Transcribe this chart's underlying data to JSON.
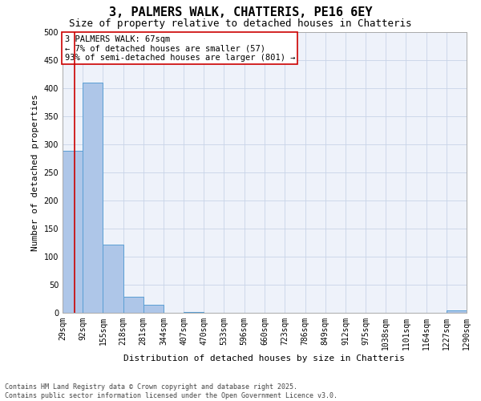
{
  "title": "3, PALMERS WALK, CHATTERIS, PE16 6EY",
  "subtitle": "Size of property relative to detached houses in Chatteris",
  "xlabel": "Distribution of detached houses by size in Chatteris",
  "ylabel": "Number of detached properties",
  "bar_color": "#aec6e8",
  "bar_edge_color": "#5a9fd4",
  "grid_color": "#c8d4e8",
  "bg_color": "#eef2fa",
  "annotation_box_color": "#cc0000",
  "vline_color": "#cc0000",
  "bins": [
    29,
    92,
    155,
    218,
    281,
    344,
    407,
    470,
    533,
    596,
    660,
    723,
    786,
    849,
    912,
    975,
    1038,
    1101,
    1164,
    1227,
    1290
  ],
  "bin_labels": [
    "29sqm",
    "92sqm",
    "155sqm",
    "218sqm",
    "281sqm",
    "344sqm",
    "407sqm",
    "470sqm",
    "533sqm",
    "596sqm",
    "660sqm",
    "723sqm",
    "786sqm",
    "849sqm",
    "912sqm",
    "975sqm",
    "1038sqm",
    "1101sqm",
    "1164sqm",
    "1227sqm",
    "1290sqm"
  ],
  "counts": [
    288,
    410,
    122,
    29,
    14,
    0,
    2,
    0,
    0,
    0,
    0,
    0,
    0,
    0,
    0,
    0,
    0,
    0,
    0,
    4
  ],
  "property_size": 67,
  "annotation_text": "3 PALMERS WALK: 67sqm\n← 7% of detached houses are smaller (57)\n93% of semi-detached houses are larger (801) →",
  "ylim": [
    0,
    500
  ],
  "yticks": [
    0,
    50,
    100,
    150,
    200,
    250,
    300,
    350,
    400,
    450,
    500
  ],
  "footer_text": "Contains HM Land Registry data © Crown copyright and database right 2025.\nContains public sector information licensed under the Open Government Licence v3.0.",
  "title_fontsize": 11,
  "subtitle_fontsize": 9,
  "label_fontsize": 8,
  "tick_fontsize": 7,
  "annotation_fontsize": 7.5,
  "footer_fontsize": 6
}
